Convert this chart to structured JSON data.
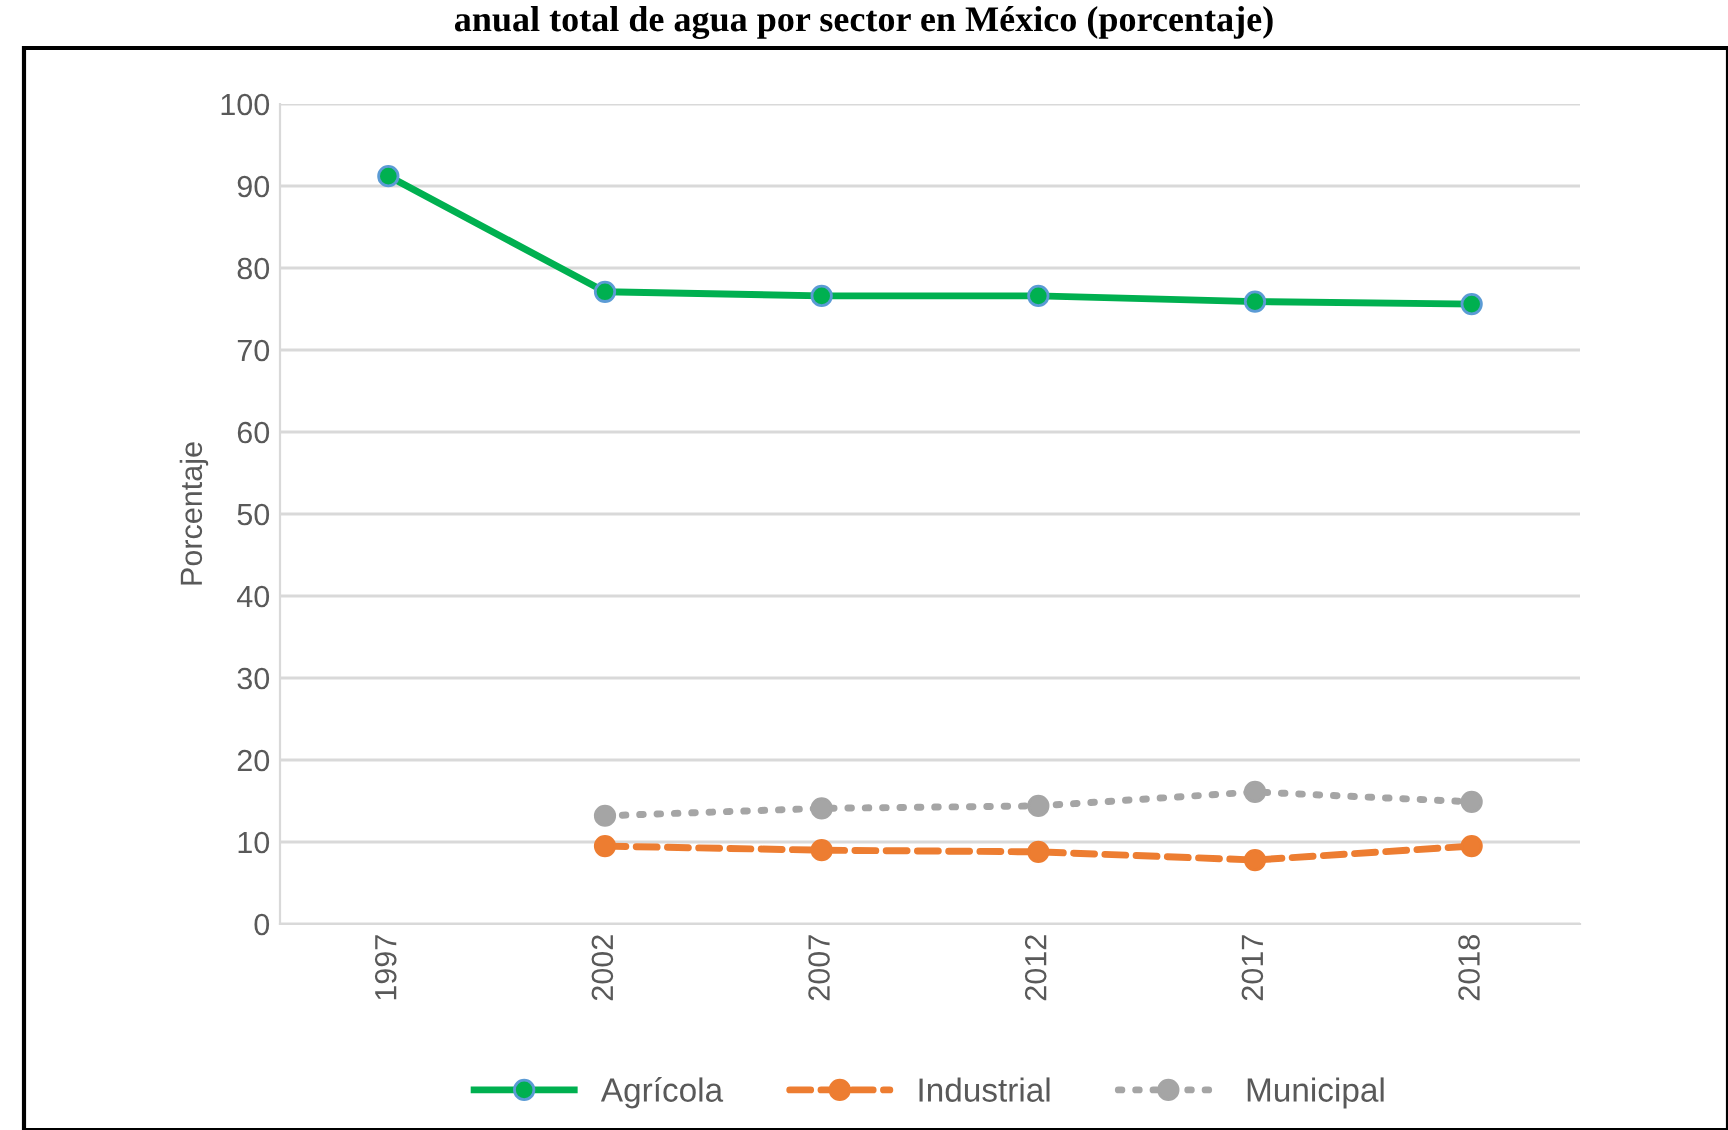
{
  "chart_data": {
    "type": "line",
    "title": "anual total de agua por sector en México (porcentaje)",
    "ylabel": "Porcentaje",
    "categories": [
      "1997",
      "2002",
      "2007",
      "2012",
      "2017",
      "2018"
    ],
    "series": [
      {
        "name": "Agrícola",
        "color": "#00b050",
        "line_style": "solid",
        "values": [
          91.2,
          77.1,
          76.6,
          76.6,
          75.9,
          75.6
        ]
      },
      {
        "name": "Industrial",
        "color": "#ed7d31",
        "line_style": "dashed",
        "values": [
          null,
          9.5,
          9.0,
          8.8,
          7.8,
          9.5
        ]
      },
      {
        "name": "Municipal",
        "color": "#a5a5a5",
        "line_style": "dotted",
        "values": [
          null,
          13.2,
          14.1,
          14.4,
          16.1,
          14.9
        ]
      }
    ],
    "ylim": [
      0,
      100
    ],
    "yticks": [
      0,
      10,
      20,
      30,
      40,
      50,
      60,
      70,
      80,
      90,
      100
    ],
    "grid": "y",
    "legend": "bottom",
    "marker": "circle"
  }
}
